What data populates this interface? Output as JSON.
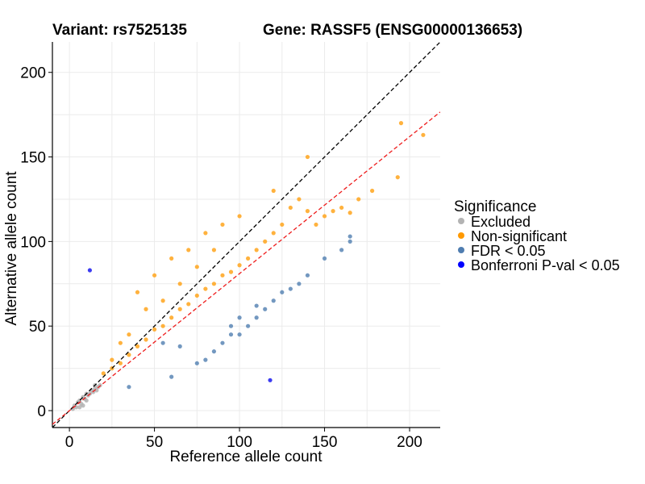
{
  "titles": {
    "variant": "Variant: rs7525135",
    "gene": "Gene: RASSF5 (ENSG00000136653)"
  },
  "colors": {
    "excluded": "#b3b3b3",
    "non_significant": "#ffa41c",
    "fdr": "#5b86b5",
    "bonferroni": "#1a1aee",
    "identity_line": "#000000",
    "fit_line": "#ee1c1c",
    "grid": "#ebebeb"
  },
  "legend": {
    "title": "Significance",
    "items": [
      {
        "label": "Excluded",
        "color": "#b3b3b3"
      },
      {
        "label": "Non-significant",
        "color": "#ff9900"
      },
      {
        "label": "FDR < 0.05",
        "color": "#4f7db0"
      },
      {
        "label": "Bonferroni P-val < 0.05",
        "color": "#0000ff"
      }
    ]
  },
  "chart_data": {
    "type": "scatter",
    "xlabel": "Reference allele count",
    "ylabel": "Alternative allele count",
    "xlim": [
      -10,
      218
    ],
    "ylim": [
      -10,
      218
    ],
    "x_ticks": [
      0,
      50,
      100,
      150,
      200
    ],
    "y_ticks": [
      0,
      50,
      100,
      150,
      200
    ],
    "grid": true,
    "legend_position": "right",
    "reference_lines": [
      {
        "name": "identity",
        "style": "dashed",
        "color": "#000000",
        "slope": 1,
        "intercept": 0
      },
      {
        "name": "fit",
        "style": "dashed",
        "color": "#ee1c1c",
        "slope": 0.81,
        "intercept": 0
      }
    ],
    "series": [
      {
        "name": "Excluded",
        "points": [
          [
            2,
            1
          ],
          [
            3,
            3
          ],
          [
            4,
            2
          ],
          [
            5,
            5
          ],
          [
            6,
            6
          ],
          [
            7,
            4
          ],
          [
            8,
            8
          ],
          [
            9,
            7
          ],
          [
            10,
            10
          ],
          [
            11,
            9
          ],
          [
            12,
            10
          ],
          [
            13,
            12
          ],
          [
            14,
            11
          ],
          [
            15,
            13
          ],
          [
            16,
            12
          ],
          [
            17,
            14
          ],
          [
            18,
            15
          ],
          [
            15,
            15
          ],
          [
            6,
            2
          ],
          [
            8,
            3
          ],
          [
            10,
            6
          ]
        ]
      },
      {
        "name": "Non-significant",
        "points": [
          [
            20,
            22
          ],
          [
            25,
            25
          ],
          [
            30,
            28
          ],
          [
            35,
            33
          ],
          [
            40,
            38
          ],
          [
            45,
            42
          ],
          [
            50,
            48
          ],
          [
            55,
            50
          ],
          [
            60,
            55
          ],
          [
            65,
            60
          ],
          [
            70,
            63
          ],
          [
            75,
            68
          ],
          [
            80,
            72
          ],
          [
            85,
            75
          ],
          [
            90,
            80
          ],
          [
            95,
            82
          ],
          [
            100,
            86
          ],
          [
            105,
            90
          ],
          [
            110,
            95
          ],
          [
            115,
            100
          ],
          [
            120,
            105
          ],
          [
            125,
            110
          ],
          [
            130,
            120
          ],
          [
            135,
            125
          ],
          [
            140,
            118
          ],
          [
            145,
            110
          ],
          [
            150,
            115
          ],
          [
            155,
            118
          ],
          [
            160,
            120
          ],
          [
            165,
            117
          ],
          [
            170,
            125
          ],
          [
            178,
            130
          ],
          [
            193,
            138
          ],
          [
            195,
            170
          ],
          [
            208,
            163
          ],
          [
            40,
            70
          ],
          [
            50,
            80
          ],
          [
            60,
            90
          ],
          [
            70,
            95
          ],
          [
            80,
            105
          ],
          [
            90,
            110
          ],
          [
            100,
            115
          ],
          [
            120,
            130
          ],
          [
            140,
            150
          ],
          [
            55,
            65
          ],
          [
            65,
            75
          ],
          [
            75,
            85
          ],
          [
            85,
            95
          ],
          [
            30,
            40
          ],
          [
            35,
            45
          ],
          [
            45,
            60
          ],
          [
            25,
            30
          ]
        ]
      },
      {
        "name": "FDR < 0.05",
        "points": [
          [
            35,
            14
          ],
          [
            60,
            20
          ],
          [
            75,
            28
          ],
          [
            80,
            30
          ],
          [
            85,
            35
          ],
          [
            90,
            40
          ],
          [
            95,
            45
          ],
          [
            100,
            45
          ],
          [
            105,
            50
          ],
          [
            110,
            55
          ],
          [
            115,
            60
          ],
          [
            120,
            65
          ],
          [
            125,
            70
          ],
          [
            135,
            75
          ],
          [
            140,
            80
          ],
          [
            150,
            90
          ],
          [
            160,
            95
          ],
          [
            165,
            100
          ],
          [
            165,
            103
          ],
          [
            100,
            55
          ],
          [
            95,
            50
          ],
          [
            110,
            62
          ],
          [
            130,
            72
          ],
          [
            55,
            40
          ],
          [
            65,
            38
          ]
        ]
      },
      {
        "name": "Bonferroni P-val < 0.05",
        "points": [
          [
            12,
            83
          ],
          [
            118,
            18
          ]
        ]
      }
    ]
  }
}
